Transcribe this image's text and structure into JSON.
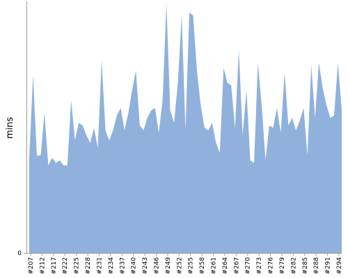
{
  "chart_data": {
    "type": "area",
    "ylabel": "mins",
    "ylim": [
      0,
      100
    ],
    "y_ticks": [
      {
        "value": 0,
        "label": "0"
      }
    ],
    "grid": false,
    "x_tick_labels": [
      "#207",
      "#212",
      "#217",
      "#222",
      "#225",
      "#228",
      "#231",
      "#234",
      "#237",
      "#240",
      "#243",
      "#246",
      "#249",
      "#252",
      "#255",
      "#258",
      "#261",
      "#264",
      "#267",
      "#270",
      "#273",
      "#276",
      "#279",
      "#282",
      "#285",
      "#288",
      "#291",
      "#294"
    ],
    "series": [
      {
        "fill_color": "#8FB1DC",
        "values": [
          38,
          71,
          39,
          39,
          56,
          35,
          38,
          36,
          37,
          35,
          35,
          61,
          45,
          52,
          51,
          47,
          44,
          50,
          42,
          77,
          49,
          45,
          49,
          55,
          58,
          49,
          56,
          65,
          73,
          51,
          49,
          54,
          57,
          58,
          48,
          61,
          100,
          57,
          52,
          68,
          95,
          49,
          96,
          95,
          73,
          59,
          50,
          49,
          52,
          44,
          40,
          74,
          68,
          67,
          50,
          81,
          47,
          65,
          37,
          36,
          76,
          59,
          37,
          51,
          50,
          58,
          48,
          72,
          51,
          54,
          49,
          53,
          58,
          39,
          75,
          54,
          76,
          66,
          59,
          54,
          55,
          76,
          57
        ]
      }
    ]
  }
}
